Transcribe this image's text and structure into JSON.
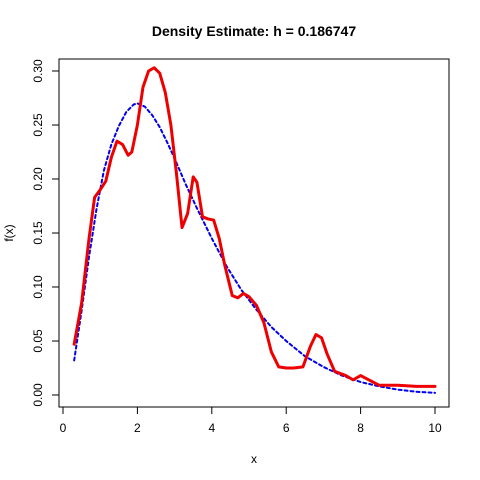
{
  "chart_data": {
    "type": "line",
    "title": "Density Estimate: h = 0.186747",
    "xlabel": "x",
    "ylabel": "f(x)",
    "xlim": [
      0,
      10.5
    ],
    "ylim": [
      -0.01,
      0.31
    ],
    "grid": false,
    "legend": "none",
    "x_ticks": [
      0,
      2,
      4,
      6,
      8,
      10
    ],
    "y_ticks": [
      0.0,
      0.05,
      0.1,
      0.15,
      0.2,
      0.25,
      0.3
    ],
    "x_tick_labels": [
      "0",
      "2",
      "4",
      "6",
      "8",
      "10"
    ],
    "y_tick_labels": [
      "0.00",
      "0.05",
      "0.10",
      "0.15",
      "0.20",
      "0.25",
      "0.30"
    ],
    "series": [
      {
        "color": "#ee0000",
        "style": "solid",
        "x": [
          0.3,
          0.5,
          0.7,
          0.85,
          1.0,
          1.15,
          1.3,
          1.45,
          1.6,
          1.75,
          1.85,
          2.0,
          2.15,
          2.3,
          2.45,
          2.6,
          2.75,
          2.9,
          3.05,
          3.2,
          3.35,
          3.5,
          3.6,
          3.75,
          3.9,
          4.05,
          4.2,
          4.35,
          4.55,
          4.7,
          4.85,
          5.0,
          5.2,
          5.4,
          5.6,
          5.8,
          6.0,
          6.2,
          6.45,
          6.65,
          6.8,
          6.95,
          7.1,
          7.3,
          7.6,
          7.8,
          8.0,
          8.5,
          9.0,
          9.5,
          10.0
        ],
        "y": [
          0.047,
          0.085,
          0.145,
          0.183,
          0.19,
          0.198,
          0.22,
          0.235,
          0.232,
          0.222,
          0.225,
          0.25,
          0.285,
          0.3,
          0.303,
          0.298,
          0.28,
          0.25,
          0.205,
          0.155,
          0.168,
          0.202,
          0.197,
          0.165,
          0.163,
          0.162,
          0.145,
          0.12,
          0.092,
          0.09,
          0.094,
          0.091,
          0.083,
          0.067,
          0.04,
          0.026,
          0.025,
          0.025,
          0.026,
          0.045,
          0.056,
          0.053,
          0.038,
          0.022,
          0.018,
          0.014,
          0.018,
          0.009,
          0.009,
          0.008,
          0.008
        ]
      },
      {
        "color": "#0000ee",
        "style": "dashed",
        "x": [
          0.3,
          0.5,
          0.7,
          0.9,
          1.1,
          1.3,
          1.5,
          1.7,
          1.9,
          2.0,
          2.2,
          2.4,
          2.6,
          2.8,
          3.0,
          3.3,
          3.6,
          4.0,
          4.4,
          4.8,
          5.2,
          5.6,
          6.0,
          6.5,
          7.0,
          7.5,
          8.0,
          8.5,
          9.0,
          9.5,
          10.0
        ],
        "y": [
          0.032,
          0.078,
          0.128,
          0.172,
          0.208,
          0.232,
          0.249,
          0.262,
          0.269,
          0.27,
          0.267,
          0.259,
          0.248,
          0.234,
          0.219,
          0.195,
          0.173,
          0.145,
          0.119,
          0.097,
          0.079,
          0.063,
          0.05,
          0.036,
          0.026,
          0.018,
          0.012,
          0.008,
          0.005,
          0.003,
          0.002
        ]
      }
    ]
  }
}
